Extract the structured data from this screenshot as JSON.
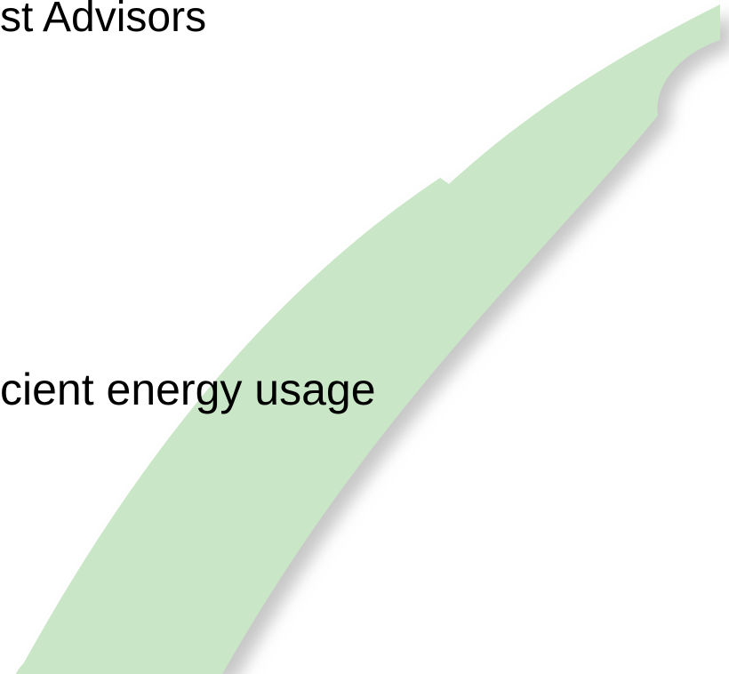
{
  "slide": {
    "lines": [
      "st Advisors",
      "cient energy usage"
    ]
  }
}
